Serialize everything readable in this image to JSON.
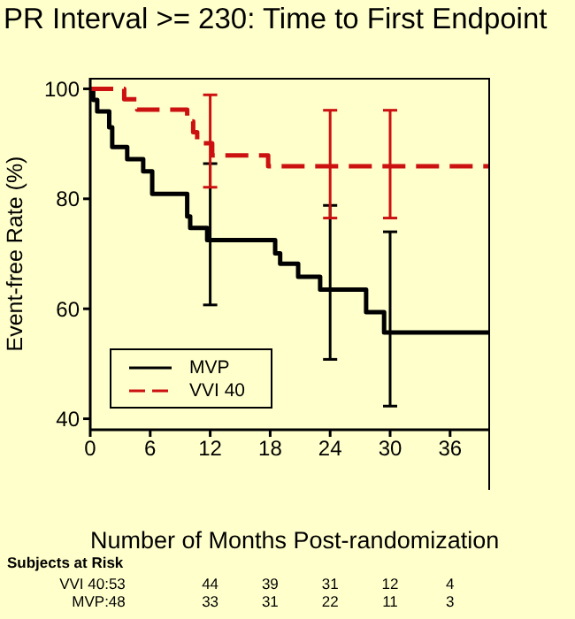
{
  "chart_data": {
    "type": "step",
    "title": "PR Interval >= 230: Time to First Endpoint",
    "xlabel": "Number of Months Post-randomization",
    "ylabel": "Event-free Rate (%)",
    "xlim": [
      0,
      40
    ],
    "xticks": [
      0,
      6,
      12,
      18,
      24,
      30,
      36
    ],
    "ylim": [
      38,
      102
    ],
    "yticks": [
      40,
      60,
      80,
      100
    ],
    "legend": "bottom left",
    "marker": "none",
    "series": [
      {
        "name": "MVP",
        "color": "#000000",
        "line_style": "solid",
        "x": [
          0,
          0.3,
          0.7,
          1.9,
          2.2,
          3.7,
          5.3,
          6.2,
          9.7,
          10.0,
          11.7,
          12,
          18.5,
          19.0,
          20.8,
          23.0,
          24,
          27.6,
          29.4,
          30,
          40
        ],
        "values": [
          100,
          98,
          95.9,
          93,
          89.4,
          87.2,
          85,
          80.9,
          76.8,
          74.7,
          72.5,
          72.5,
          70.1,
          68.2,
          65.8,
          63.5,
          63.5,
          59.4,
          55.7,
          55.7,
          55.7
        ],
        "errors": [
          null,
          null,
          null,
          null,
          null,
          null,
          null,
          null,
          null,
          null,
          null,
          [
            60.7,
            86.4
          ],
          null,
          null,
          null,
          null,
          [
            50.8,
            78.8
          ],
          null,
          null,
          [
            42.3,
            74
          ],
          null
        ]
      },
      {
        "name": "VVI 40",
        "color": "#cc1111",
        "line_style": "dashed",
        "x": [
          0,
          3.4,
          4.7,
          9.7,
          10.3,
          10.7,
          12,
          12.2,
          17.8,
          24,
          30,
          40
        ],
        "values": [
          100,
          98.1,
          96.2,
          94.1,
          92.1,
          90.1,
          90.1,
          87.9,
          85.9,
          85.9,
          85.9,
          85.9
        ],
        "errors": [
          null,
          null,
          null,
          null,
          null,
          null,
          [
            82.1,
            98.9
          ],
          null,
          null,
          [
            76.5,
            96.1
          ],
          [
            76.5,
            96.1
          ],
          null
        ]
      }
    ],
    "annotations": [
      "Subjects at Risk",
      "VVI 40:53",
      "44",
      "39",
      "31",
      "12",
      "4",
      "MVP:48",
      "33",
      "31",
      "22",
      "11",
      "3"
    ]
  }
}
